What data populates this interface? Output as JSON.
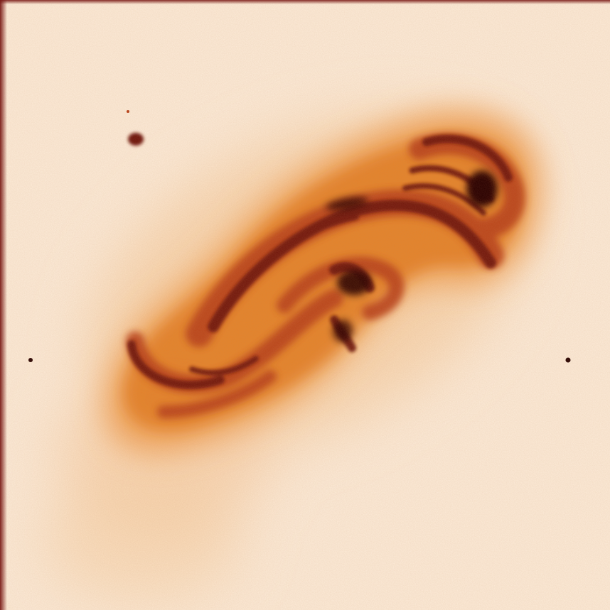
{
  "image": {
    "subject": "",
    "palette": {
      "background": "#fbe9d6",
      "halo_light": "#f6cfa6",
      "glow_orange": "#ee9a4a",
      "bright_orange": "#e07a22",
      "rust": "#b8431c",
      "dark_red": "#6e150c",
      "core": "#2a0503",
      "frame_edge": "#7a1a16"
    }
  }
}
